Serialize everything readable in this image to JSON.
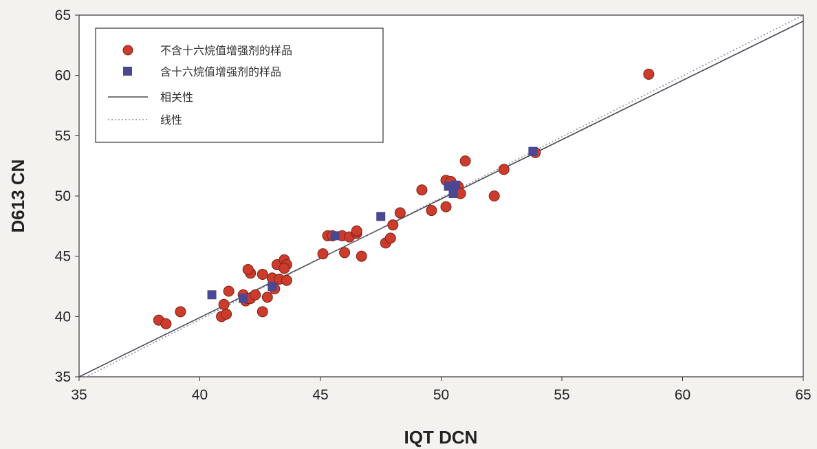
{
  "chart_data": {
    "type": "scatter",
    "xlabel": "IQT DCN",
    "ylabel": "D613 CN",
    "xlim": [
      35,
      65
    ],
    "ylim": [
      35,
      65
    ],
    "xticks": [
      35,
      40,
      45,
      50,
      55,
      60,
      65
    ],
    "yticks": [
      35,
      40,
      45,
      50,
      55,
      60,
      65
    ],
    "grid": false,
    "legend_position": "top-left",
    "legend": [
      {
        "label": "不含十六烷值增强剂的样品",
        "marker": "circle"
      },
      {
        "label": "含十六烷值增强剂的样品",
        "marker": "square"
      },
      {
        "label": "相关性",
        "marker": "solid-line"
      },
      {
        "label": "线性",
        "marker": "dotted-line"
      }
    ],
    "series": [
      {
        "name": "不含十六烷值增强剂的样品",
        "marker": "circle",
        "color": "#cc3b2b",
        "x": [
          38.3,
          38.6,
          39.2,
          40.9,
          41.1,
          41.0,
          41.2,
          41.8,
          41.9,
          42.0,
          42.1,
          42.0,
          42.1,
          42.3,
          42.6,
          42.6,
          42.8,
          43.0,
          43.1,
          43.2,
          43.3,
          43.5,
          43.6,
          43.6,
          43.5,
          45.1,
          45.3,
          45.5,
          45.9,
          46.0,
          46.2,
          46.5,
          46.5,
          46.7,
          47.7,
          47.9,
          48.0,
          48.3,
          49.2,
          49.6,
          50.2,
          50.2,
          50.4,
          50.7,
          50.8,
          51.0,
          52.2,
          52.6,
          53.9,
          58.6
        ],
        "y": [
          39.7,
          39.4,
          40.4,
          40.0,
          40.2,
          41.0,
          42.1,
          41.8,
          41.3,
          41.5,
          43.6,
          43.9,
          41.5,
          41.8,
          40.4,
          43.5,
          41.6,
          43.2,
          42.3,
          44.3,
          43.1,
          44.7,
          44.3,
          43.0,
          44.0,
          45.2,
          46.7,
          46.7,
          46.7,
          45.3,
          46.6,
          46.9,
          47.1,
          45.0,
          46.1,
          46.5,
          47.6,
          48.6,
          50.5,
          48.8,
          51.3,
          49.1,
          51.2,
          50.8,
          50.2,
          52.9,
          50.0,
          52.2,
          53.6,
          60.1
        ]
      },
      {
        "name": "含十六烷值增强剂的样品",
        "marker": "square",
        "color": "#4a4793",
        "x": [
          40.5,
          41.8,
          43.0,
          45.6,
          47.5,
          50.3,
          50.5,
          50.6,
          53.8
        ],
        "y": [
          41.8,
          41.5,
          42.5,
          46.7,
          48.3,
          50.8,
          50.2,
          50.9,
          53.7
        ]
      }
    ],
    "lines": [
      {
        "name": "相关性",
        "style": "solid",
        "color": "#4a4a55",
        "x": [
          35,
          65
        ],
        "y": [
          35,
          64.5
        ]
      },
      {
        "name": "线性",
        "style": "dotted",
        "color": "#8a8a9c",
        "x": [
          35,
          65
        ],
        "y": [
          34.7,
          65
        ]
      }
    ],
    "colors": {
      "circle_fill": "#cc3b2b",
      "circle_stroke": "#7a2418",
      "square_fill": "#4a4793",
      "axis": "#333333"
    }
  }
}
